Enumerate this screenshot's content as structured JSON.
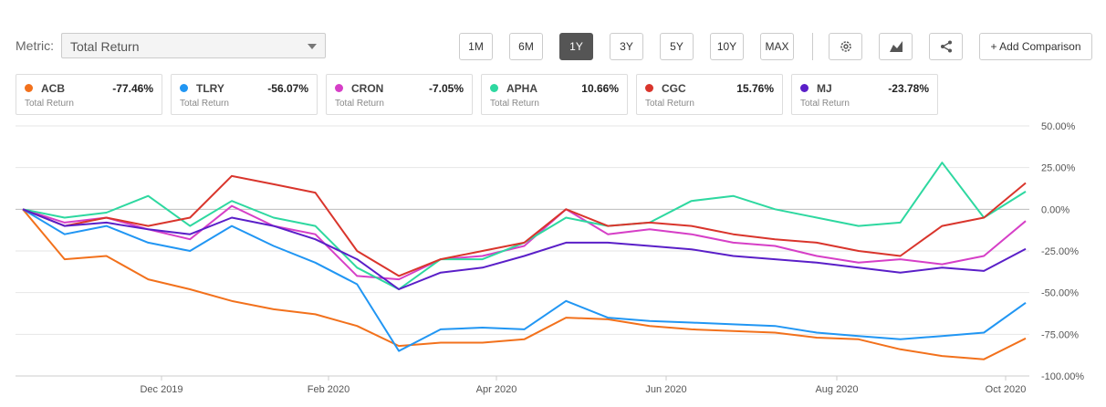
{
  "metric": {
    "label": "Metric:",
    "value": "Total Return"
  },
  "ranges": [
    "1M",
    "6M",
    "1Y",
    "3Y",
    "5Y",
    "10Y",
    "MAX"
  ],
  "active_range": "1Y",
  "icons": [
    "settings-icon",
    "chart-type-icon",
    "share-icon"
  ],
  "add_comparison": "+ Add Comparison",
  "legend": [
    {
      "symbol": "ACB",
      "value": "-77.46%",
      "sub": "Total Return",
      "color": "#f2711c"
    },
    {
      "symbol": "TLRY",
      "value": "-56.07%",
      "sub": "Total Return",
      "color": "#2196f3"
    },
    {
      "symbol": "CRON",
      "value": "-7.05%",
      "sub": "Total Return",
      "color": "#d63fc7"
    },
    {
      "symbol": "APHA",
      "value": "10.66%",
      "sub": "Total Return",
      "color": "#2ed8a0"
    },
    {
      "symbol": "CGC",
      "value": "15.76%",
      "sub": "Total Return",
      "color": "#d9352c"
    },
    {
      "symbol": "MJ",
      "value": "-23.78%",
      "sub": "Total Return",
      "color": "#5a1fc8"
    }
  ],
  "chart_data": {
    "type": "line",
    "title": "Total Return",
    "ylim": [
      -100,
      50
    ],
    "y_ticks": [
      50,
      25,
      0,
      -25,
      -50,
      -75,
      -100
    ],
    "y_tick_labels": [
      "50.00%",
      "25.00%",
      "0.00%",
      "-25.00%",
      "-50.00%",
      "-75.00%",
      "-100.00%"
    ],
    "x_ticks": [
      "Dec 2019",
      "Feb 2020",
      "Apr 2020",
      "Jun 2020",
      "Aug 2020",
      "Oct 2020"
    ],
    "x": [
      "Oct 2019",
      "Nov 2019",
      "Nov 2019",
      "Dec 2019",
      "Dec 2019",
      "Jan 2020",
      "Jan 2020",
      "Feb 2020",
      "Feb 2020",
      "Mar 2020",
      "Mar 2020",
      "Apr 2020",
      "Apr 2020",
      "May 2020",
      "May 2020",
      "Jun 2020",
      "Jun 2020",
      "Jul 2020",
      "Jul 2020",
      "Aug 2020",
      "Aug 2020",
      "Sep 2020",
      "Sep 2020",
      "Oct 2020",
      "Oct 2020"
    ],
    "series": [
      {
        "name": "ACB",
        "values": [
          0,
          -30,
          -28,
          -42,
          -48,
          -55,
          -60,
          -63,
          -70,
          -82,
          -80,
          -80,
          -78,
          -65,
          -66,
          -70,
          -72,
          -73,
          -74,
          -77,
          -78,
          -84,
          -88,
          -90,
          -77.46
        ]
      },
      {
        "name": "TLRY",
        "values": [
          0,
          -15,
          -10,
          -20,
          -25,
          -10,
          -22,
          -32,
          -45,
          -85,
          -72,
          -71,
          -72,
          -55,
          -65,
          -67,
          -68,
          -69,
          -70,
          -74,
          -76,
          -78,
          -76,
          -74,
          -56.07
        ]
      },
      {
        "name": "CRON",
        "values": [
          0,
          -8,
          -5,
          -12,
          -18,
          2,
          -10,
          -15,
          -40,
          -42,
          -30,
          -28,
          -22,
          0,
          -15,
          -12,
          -15,
          -20,
          -22,
          -28,
          -32,
          -30,
          -33,
          -28,
          -7.05
        ]
      },
      {
        "name": "APHA",
        "values": [
          0,
          -5,
          -2,
          8,
          -10,
          5,
          -5,
          -10,
          -35,
          -48,
          -30,
          -30,
          -20,
          -5,
          -10,
          -8,
          5,
          8,
          0,
          -5,
          -10,
          -8,
          28,
          -5,
          10.66
        ]
      },
      {
        "name": "CGC",
        "values": [
          0,
          -10,
          -5,
          -10,
          -5,
          20,
          15,
          10,
          -25,
          -40,
          -30,
          -25,
          -20,
          0,
          -10,
          -8,
          -10,
          -15,
          -18,
          -20,
          -25,
          -28,
          -10,
          -5,
          15.76
        ]
      },
      {
        "name": "MJ",
        "values": [
          0,
          -10,
          -8,
          -12,
          -15,
          -5,
          -10,
          -18,
          -30,
          -48,
          -38,
          -35,
          -28,
          -20,
          -20,
          -22,
          -24,
          -28,
          -30,
          -32,
          -35,
          -38,
          -35,
          -37,
          -23.78
        ]
      }
    ]
  }
}
